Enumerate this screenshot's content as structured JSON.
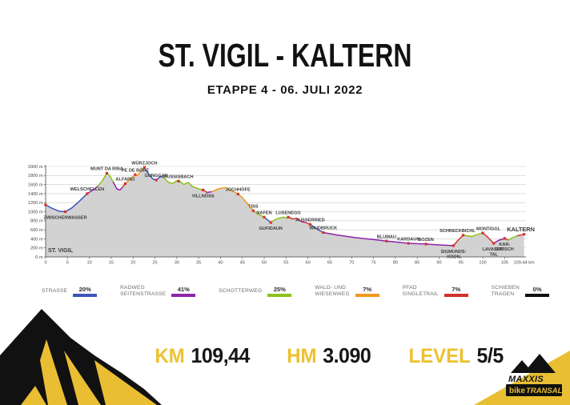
{
  "title": "ST. VIGIL - KALTERN",
  "subtitle": "ETAPPE 4 - 06. JULI 2022",
  "colors": {
    "strasse": "#3D56B9",
    "radweg": "#8E24AA",
    "schotter": "#8DC21E",
    "wald": "#F09A1E",
    "pfad": "#D2342B",
    "schieben": "#111111",
    "marker": "#D2342B",
    "area_fill": "#D2D2D2",
    "grid": "#C9C9C9",
    "axis": "#444444",
    "accent_yellow": "#EDC12F"
  },
  "chart_data": {
    "type": "area",
    "title": "",
    "xlabel": "km",
    "ylabel": "m",
    "x_max": 109.44,
    "ylim": [
      0,
      2000
    ],
    "y_tick_step": 200,
    "y_tick_suffix": " m",
    "x_ticks": [
      0,
      5,
      10,
      15,
      20,
      25,
      30,
      35,
      40,
      45,
      50,
      55,
      60,
      65,
      70,
      75,
      80,
      85,
      90,
      95,
      100,
      105
    ],
    "x_end_label": "109,44 km",
    "grid": true,
    "segments": [
      {
        "surface": "strasse",
        "points": [
          [
            0,
            1150
          ],
          [
            1.5,
            1075
          ],
          [
            3,
            1015
          ],
          [
            4.5,
            1000
          ],
          [
            6,
            1085
          ],
          [
            7.5,
            1215
          ],
          [
            9.5,
            1400
          ]
        ]
      },
      {
        "surface": "radweg",
        "points": [
          [
            9.5,
            1400
          ],
          [
            11,
            1490
          ],
          [
            12,
            1570
          ]
        ]
      },
      {
        "surface": "schotter",
        "points": [
          [
            12,
            1570
          ],
          [
            13,
            1690
          ],
          [
            14,
            1850
          ],
          [
            14.7,
            1795
          ],
          [
            15.5,
            1650
          ]
        ]
      },
      {
        "surface": "radweg",
        "points": [
          [
            15.5,
            1650
          ],
          [
            16.3,
            1505
          ],
          [
            17,
            1480
          ],
          [
            17.6,
            1545
          ]
        ]
      },
      {
        "surface": "pfad",
        "points": [
          [
            17.6,
            1545
          ],
          [
            18.2,
            1620
          ]
        ]
      },
      {
        "surface": "wald",
        "points": [
          [
            18.2,
            1620
          ],
          [
            19.3,
            1715
          ],
          [
            20.5,
            1820
          ],
          [
            21,
            1795
          ],
          [
            21.8,
            1905
          ],
          [
            22.2,
            1950
          ]
        ]
      },
      {
        "surface": "schotter",
        "points": [
          [
            22.2,
            1950
          ],
          [
            22.6,
            1980
          ]
        ]
      },
      {
        "surface": "strasse",
        "points": [
          [
            22.6,
            1980
          ],
          [
            23.5,
            1845
          ],
          [
            24.5,
            1725
          ],
          [
            25.3,
            1700
          ],
          [
            26.2,
            1775
          ],
          [
            27,
            1760
          ]
        ]
      },
      {
        "surface": "schotter",
        "points": [
          [
            27,
            1760
          ],
          [
            28,
            1655
          ],
          [
            29,
            1620
          ],
          [
            30,
            1685
          ],
          [
            30.8,
            1665
          ],
          [
            31.6,
            1600
          ],
          [
            32.6,
            1650
          ],
          [
            33.6,
            1560
          ],
          [
            35,
            1505
          ],
          [
            36,
            1480
          ]
        ]
      },
      {
        "surface": "pfad",
        "points": [
          [
            36,
            1480
          ],
          [
            37,
            1425
          ]
        ]
      },
      {
        "surface": "radweg",
        "points": [
          [
            37,
            1425
          ],
          [
            38,
            1445
          ]
        ]
      },
      {
        "surface": "wald",
        "points": [
          [
            38,
            1445
          ],
          [
            39.5,
            1505
          ],
          [
            41,
            1535
          ],
          [
            42,
            1485
          ],
          [
            43,
            1445
          ],
          [
            44,
            1390
          ],
          [
            45,
            1315
          ],
          [
            46,
            1195
          ],
          [
            47.5,
            1020
          ]
        ]
      },
      {
        "surface": "schotter",
        "points": [
          [
            47.5,
            1020
          ],
          [
            48.6,
            945
          ],
          [
            50,
            880
          ]
        ]
      },
      {
        "surface": "strasse",
        "points": [
          [
            50,
            880
          ],
          [
            51,
            800
          ],
          [
            51.5,
            760
          ]
        ]
      },
      {
        "surface": "schotter",
        "points": [
          [
            51.5,
            760
          ],
          [
            52.5,
            825
          ],
          [
            53.5,
            862
          ],
          [
            54.5,
            882
          ],
          [
            55,
            860
          ],
          [
            55.5,
            880
          ]
        ]
      },
      {
        "surface": "pfad",
        "points": [
          [
            55.5,
            880
          ],
          [
            56.5,
            840
          ],
          [
            57.5,
            852
          ],
          [
            58.5,
            782
          ]
        ]
      },
      {
        "surface": "radweg",
        "points": [
          [
            58.5,
            782
          ],
          [
            59.5,
            760
          ]
        ]
      },
      {
        "surface": "pfad",
        "points": [
          [
            59.5,
            760
          ],
          [
            60.5,
            720
          ]
        ]
      },
      {
        "surface": "strasse",
        "points": [
          [
            60.5,
            720
          ],
          [
            62,
            620
          ],
          [
            63.5,
            540
          ]
        ]
      },
      {
        "surface": "radweg",
        "points": [
          [
            63.5,
            540
          ],
          [
            67,
            480
          ],
          [
            71,
            425
          ],
          [
            75,
            385
          ],
          [
            78,
            350
          ],
          [
            80,
            332
          ],
          [
            83,
            300
          ],
          [
            87,
            285
          ],
          [
            90,
            265
          ],
          [
            93.3,
            250
          ]
        ]
      },
      {
        "surface": "pfad",
        "points": [
          [
            93.3,
            250
          ],
          [
            94.3,
            365
          ],
          [
            95.5,
            480
          ]
        ]
      },
      {
        "surface": "schotter",
        "points": [
          [
            95.5,
            480
          ],
          [
            96.5,
            468
          ],
          [
            97.5,
            452
          ],
          [
            98.6,
            492
          ],
          [
            100,
            530
          ]
        ]
      },
      {
        "surface": "pfad",
        "points": [
          [
            100,
            530
          ],
          [
            101,
            450
          ],
          [
            102.5,
            300
          ]
        ]
      },
      {
        "surface": "radweg",
        "points": [
          [
            102.5,
            300
          ],
          [
            103.5,
            362
          ],
          [
            105,
            410
          ]
        ]
      },
      {
        "surface": "pfad",
        "points": [
          [
            105,
            410
          ],
          [
            105.8,
            372
          ]
        ]
      },
      {
        "surface": "schotter",
        "points": [
          [
            105.8,
            372
          ],
          [
            107,
            432
          ],
          [
            108,
            470
          ]
        ]
      },
      {
        "surface": "pfad",
        "points": [
          [
            108,
            470
          ],
          [
            109.44,
            500
          ]
        ]
      }
    ],
    "waypoints": [
      {
        "lines": [
          "ST. VIGIL"
        ],
        "km": 0,
        "elev": 1150,
        "label_pos": "start"
      },
      {
        "lines": [
          "ZWISCHENWASSER"
        ],
        "km": 4.5,
        "elev": 1000,
        "label_pos": "below"
      },
      {
        "lines": [
          "WELSCHELLEN"
        ],
        "km": 9.5,
        "elev": 1400,
        "label_pos": "above"
      },
      {
        "lines": [
          "MUNT DA RINA"
        ],
        "km": 14,
        "elev": 1850,
        "label_pos": "above"
      },
      {
        "lines": [
          "ALFAREI"
        ],
        "km": 18.2,
        "elev": 1620,
        "label_pos": "above"
      },
      {
        "lines": [
          "PE DE BÖRZ"
        ],
        "km": 20.5,
        "elev": 1820,
        "label_pos": "above"
      },
      {
        "lines": [
          "WÜRZJOCH"
        ],
        "km": 22.6,
        "elev": 1980,
        "label_pos": "above"
      },
      {
        "lines": [
          "GUNGGAN"
        ],
        "km": 25.3,
        "elev": 1700,
        "label_pos": "above"
      },
      {
        "lines": [
          "RUSSISBACH"
        ],
        "km": 30.4,
        "elev": 1675,
        "label_pos": "above"
      },
      {
        "lines": [
          "VILLNÖSS"
        ],
        "km": 36,
        "elev": 1480,
        "label_pos": "below"
      },
      {
        "lines": [
          "JOCHHÖFE"
        ],
        "km": 44,
        "elev": 1390,
        "label_pos": "above"
      },
      {
        "lines": [
          "TISS"
        ],
        "km": 47.5,
        "elev": 1020,
        "label_pos": "above"
      },
      {
        "lines": [
          "NAFEN"
        ],
        "km": 50,
        "elev": 880,
        "label_pos": "above"
      },
      {
        "lines": [
          "GUFIDAUN"
        ],
        "km": 51.5,
        "elev": 760,
        "label_pos": "below"
      },
      {
        "lines": [
          "LUSENEGG"
        ],
        "km": 55.5,
        "elev": 880,
        "label_pos": "above"
      },
      {
        "lines": [
          "AUSSERRIED"
        ],
        "km": 60.5,
        "elev": 720,
        "label_pos": "above"
      },
      {
        "lines": [
          "WAIDBRUCK"
        ],
        "km": 63.5,
        "elev": 540,
        "label_pos": "above"
      },
      {
        "lines": [
          "BLUMAU"
        ],
        "km": 78,
        "elev": 350,
        "label_pos": "above"
      },
      {
        "lines": [
          "KARDAUN"
        ],
        "km": 83,
        "elev": 300,
        "label_pos": "above"
      },
      {
        "lines": [
          "BOZEN"
        ],
        "km": 87,
        "elev": 285,
        "label_pos": "above"
      },
      {
        "lines": [
          "SIGMUNDS-",
          "KRON"
        ],
        "km": 93.3,
        "elev": 250,
        "label_pos": "below"
      },
      {
        "lines": [
          "SCHRECKBICHL"
        ],
        "km": 95.5,
        "elev": 480,
        "label_pos": "above",
        "dx": -7
      },
      {
        "lines": [
          "MONTIGGL"
        ],
        "km": 100,
        "elev": 530,
        "label_pos": "above",
        "dx": 7
      },
      {
        "lines": [
          "LAVASON-",
          "TAL"
        ],
        "km": 102.5,
        "elev": 300,
        "label_pos": "below"
      },
      {
        "lines": [
          "KAR-",
          "DATSCH"
        ],
        "km": 105,
        "elev": 410,
        "label_pos": "below"
      },
      {
        "lines": [
          "KALTERN"
        ],
        "km": 109.44,
        "elev": 500,
        "label_pos": "above",
        "end": true,
        "dx": -4
      }
    ]
  },
  "legend": [
    {
      "lines": [
        "STRASSE"
      ],
      "pct": "20%",
      "color_key": "strasse"
    },
    {
      "lines": [
        "RADWEG",
        "SEITENSTRASSE"
      ],
      "pct": "41%",
      "color_key": "radweg"
    },
    {
      "lines": [
        "SCHOTTERWEG"
      ],
      "pct": "25%",
      "color_key": "schotter"
    },
    {
      "lines": [
        "WALD- UND",
        "WIESENWEG"
      ],
      "pct": "7%",
      "color_key": "wald"
    },
    {
      "lines": [
        "PFAD",
        "SINGLETRAIL"
      ],
      "pct": "7%",
      "color_key": "pfad"
    },
    {
      "lines": [
        "SCHIEBEN",
        "TRAGEN"
      ],
      "pct": "0%",
      "color_key": "schieben"
    }
  ],
  "stats": [
    {
      "label": "KM",
      "value": "109,44"
    },
    {
      "label": "HM",
      "value": "3.090"
    },
    {
      "label": "LEVEL",
      "value": "5/5"
    }
  ],
  "logo": {
    "brand": "MAXXIS",
    "bike": "bike",
    "transalp": "TRANSALP"
  }
}
